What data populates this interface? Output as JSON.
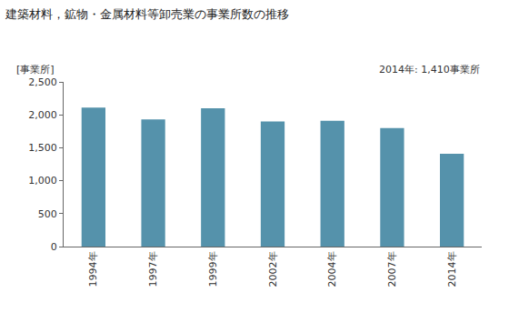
{
  "chart_data": {
    "type": "bar",
    "title": "建築材料，鉱物・金属材料等卸売業の事業所数の推移",
    "ylabel": "[事業所]",
    "annotations": [
      "2014年: 1,410事業所"
    ],
    "categories": [
      "1994年",
      "1997年",
      "1999年",
      "2002年",
      "2004年",
      "2007年",
      "2014年"
    ],
    "values": [
      2110,
      1930,
      2100,
      1900,
      1910,
      1800,
      1410
    ],
    "color": "#5592ab",
    "ylim": [
      0,
      2500
    ],
    "yticks": [
      0,
      500,
      {
        "value": 1000,
        "label": "1,000"
      },
      {
        "value": 1500,
        "label": "1,500"
      },
      {
        "value": 2000,
        "label": "2,000"
      },
      {
        "value": 2500,
        "label": "2,500"
      }
    ],
    "grid": false
  }
}
